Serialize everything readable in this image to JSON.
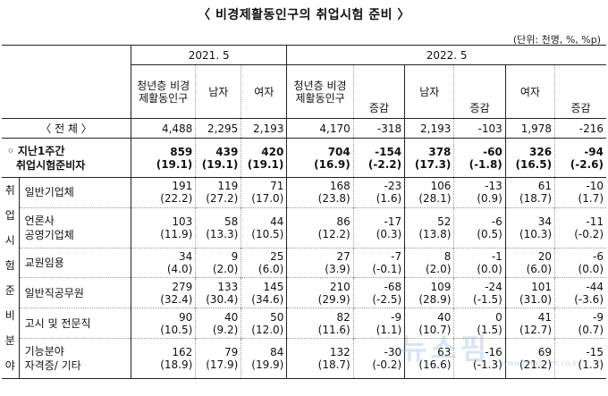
{
  "title": "〈 비경제활동인구의 취업시험 준비 〉",
  "unit": "(단위: 천명, %, %p)",
  "header": {
    "year1": "2021. 5",
    "year2": "2022. 5",
    "youth": "청년층 비경제활동인구",
    "male": "남자",
    "female": "여자",
    "change": "증감"
  },
  "rows": {
    "total": {
      "label": "〈 전   체 〉",
      "v": [
        "4,488",
        "2,295",
        "2,193",
        "4,170",
        "-318",
        "2,193",
        "-103",
        "1,978",
        "-216"
      ]
    },
    "prep": {
      "label1": "◦ 지난1주간",
      "label2": "취업시험준비자",
      "v": [
        "859",
        "439",
        "420",
        "704",
        "-154",
        "378",
        "-60",
        "326",
        "-94"
      ],
      "p": [
        "(19.1)",
        "(19.1)",
        "(19.1)",
        "(16.9)",
        "(-2.2)",
        "(17.3)",
        "(-1.8)",
        "(16.5)",
        "(-2.6)"
      ]
    },
    "side_label": [
      "취",
      "업",
      "시",
      "험",
      "준",
      "비",
      "분",
      "야"
    ],
    "general": {
      "label": "일반기업체",
      "v": [
        "191",
        "119",
        "71",
        "168",
        "-23",
        "106",
        "-13",
        "61",
        "-10"
      ],
      "p": [
        "(22.2)",
        "(27.2)",
        "(17.0)",
        "(23.8)",
        "(1.6)",
        "(28.1)",
        "(0.9)",
        "(18.7)",
        "(1.7)"
      ]
    },
    "public": {
      "label1": "언론사",
      "label2": "공영기업체",
      "v": [
        "103",
        "58",
        "44",
        "86",
        "-17",
        "52",
        "-6",
        "34",
        "-11"
      ],
      "p": [
        "(11.9)",
        "(13.3)",
        "(10.5)",
        "(12.2)",
        "(0.3)",
        "(13.8)",
        "(0.5)",
        "(10.3)",
        "(-0.2)"
      ]
    },
    "teacher": {
      "label": "교원임용",
      "v": [
        "34",
        "9",
        "25",
        "27",
        "-7",
        "8",
        "-1",
        "20",
        "-6"
      ],
      "p": [
        "(4.0)",
        "(2.0)",
        "(6.0)",
        "(3.9)",
        "(-0.1)",
        "(2.0)",
        "(0.0)",
        "(6.0)",
        "(0.0)"
      ]
    },
    "civil": {
      "label": "일반직공무원",
      "v": [
        "279",
        "133",
        "145",
        "210",
        "-68",
        "109",
        "-24",
        "101",
        "-44"
      ],
      "p": [
        "(32.4)",
        "(30.4)",
        "(34.6)",
        "(29.9)",
        "(-2.5)",
        "(28.9)",
        "(-1.5)",
        "(31.0)",
        "(-3.6)"
      ]
    },
    "exam": {
      "label": "고시 및 전문직",
      "v": [
        "90",
        "40",
        "50",
        "82",
        "-9",
        "40",
        "0",
        "41",
        "-9"
      ],
      "p": [
        "(10.5)",
        "(9.2)",
        "(12.0)",
        "(11.6)",
        "(1.1)",
        "(10.7)",
        "(1.5)",
        "(12.7)",
        "(0.7)"
      ]
    },
    "skill": {
      "label1": "기능분야",
      "label2": "자격증/ 기타",
      "v": [
        "162",
        "79",
        "84",
        "132",
        "-30",
        "63",
        "-16",
        "69",
        "-15"
      ],
      "p": [
        "(18.9)",
        "(17.9)",
        "(19.9)",
        "(18.7)",
        "(-0.2)",
        "(16.6)",
        "(-1.3)",
        "(21.2)",
        "(1.3)"
      ]
    }
  },
  "watermark": "뉴스핌",
  "watermark_sub": "www.newspim.co.kr"
}
